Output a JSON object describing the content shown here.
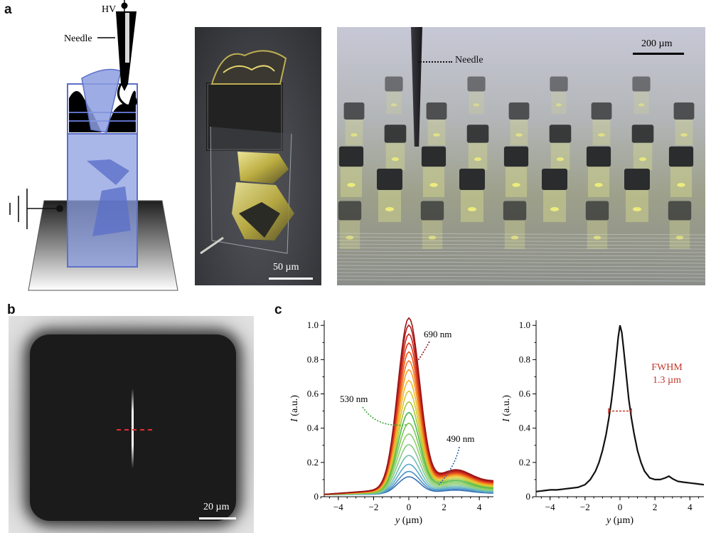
{
  "panels": {
    "a": "a",
    "b": "b",
    "c": "c"
  },
  "panel_a": {
    "diagram": {
      "hv_label": "HV",
      "needle_label": "Needle"
    },
    "photo_single": {
      "scale_label": "50 µm"
    },
    "photo_array": {
      "scale_label": "200 µm",
      "needle_label": "Needle"
    }
  },
  "panel_b": {
    "scale_label": "20 µm"
  },
  "colors": {
    "diagram_blue": "#8c9de0",
    "diagram_blue_dark": "#5d70c8",
    "fwhm_red": "#c0392b",
    "profile_black": "#111111"
  },
  "chart_data": [
    {
      "type": "line",
      "xlabel_italic": "y",
      "xlabel_unit": "(µm)",
      "ylabel": "I",
      "ylabel_unit": "(a.u.)",
      "xlim": [
        -4.8,
        4.8
      ],
      "ylim": [
        0,
        1.03
      ],
      "xticks": [
        -4,
        -2,
        0,
        2,
        4
      ],
      "yticks": [
        0,
        0.2,
        0.4,
        0.6,
        0.8,
        1.0
      ],
      "ytick_labels": [
        "0",
        "0.2",
        "0.4",
        "0.6",
        "0.8",
        "1.0"
      ],
      "annotations": [
        {
          "text": "690 nm",
          "color": "#8b1a1a"
        },
        {
          "text": "530 nm",
          "color": "#3aa43a"
        },
        {
          "text": "490 nm",
          "color": "#2d5fa8"
        }
      ],
      "series": [
        {
          "color": "#3a6fb0",
          "peak": 0.1,
          "shoulder": 0.02
        },
        {
          "color": "#4a8ec8",
          "peak": 0.13,
          "shoulder": 0.025
        },
        {
          "color": "#5aa8c8",
          "peak": 0.17,
          "shoulder": 0.03
        },
        {
          "color": "#6fbfb0",
          "peak": 0.22,
          "shoulder": 0.035
        },
        {
          "color": "#86c98a",
          "peak": 0.28,
          "shoulder": 0.04
        },
        {
          "color": "#8fd06a",
          "peak": 0.34,
          "shoulder": 0.045
        },
        {
          "color": "#7cc652",
          "peak": 0.4,
          "shoulder": 0.05
        },
        {
          "color": "#4cb84a",
          "peak": 0.46,
          "shoulder": 0.055
        },
        {
          "color": "#a8c83a",
          "peak": 0.52,
          "shoulder": 0.06
        },
        {
          "color": "#d4c832",
          "peak": 0.58,
          "shoulder": 0.065
        },
        {
          "color": "#f0b82a",
          "peak": 0.64,
          "shoulder": 0.07
        },
        {
          "color": "#f59a26",
          "peak": 0.7,
          "shoulder": 0.072
        },
        {
          "color": "#f07a22",
          "peak": 0.75,
          "shoulder": 0.074
        },
        {
          "color": "#e85a1e",
          "peak": 0.8,
          "shoulder": 0.076
        },
        {
          "color": "#dc3e1e",
          "peak": 0.85,
          "shoulder": 0.078
        },
        {
          "color": "#c8281e",
          "peak": 0.9,
          "shoulder": 0.08
        },
        {
          "color": "#b01e1e",
          "peak": 0.95,
          "shoulder": 0.082
        },
        {
          "color": "#9a1414",
          "peak": 0.99,
          "shoulder": 0.085
        }
      ]
    },
    {
      "type": "line",
      "xlabel_italic": "y",
      "xlabel_unit": "(µm)",
      "ylabel": "I",
      "ylabel_unit": "(a.u.)",
      "xlim": [
        -4.8,
        4.8
      ],
      "ylim": [
        0,
        1.03
      ],
      "xticks": [
        -4,
        -2,
        0,
        2,
        4
      ],
      "yticks": [
        0,
        0.2,
        0.4,
        0.6,
        0.8,
        1.0
      ],
      "ytick_labels": [
        "0",
        "0.2",
        "0.4",
        "0.6",
        "0.8",
        "1.0"
      ],
      "fwhm_label_line1": "FWHM",
      "fwhm_label_line2": "1.3 µm",
      "fwhm": 1.3,
      "half_max": 0.5,
      "series": [
        {
          "x": [
            -4.8,
            -4.4,
            -4.0,
            -3.6,
            -3.2,
            -2.8,
            -2.4,
            -2.0,
            -1.7,
            -1.4,
            -1.2,
            -1.0,
            -0.8,
            -0.65,
            -0.5,
            -0.35,
            -0.2,
            -0.1,
            0,
            0.1,
            0.2,
            0.35,
            0.5,
            0.65,
            0.8,
            1.0,
            1.2,
            1.4,
            1.7,
            2.0,
            2.3,
            2.6,
            2.8,
            3.0,
            3.3,
            3.6,
            4.0,
            4.4,
            4.8
          ],
          "y": [
            0.03,
            0.035,
            0.04,
            0.04,
            0.045,
            0.05,
            0.055,
            0.07,
            0.1,
            0.15,
            0.2,
            0.27,
            0.36,
            0.45,
            0.55,
            0.68,
            0.83,
            0.93,
            1.0,
            0.96,
            0.87,
            0.72,
            0.57,
            0.46,
            0.37,
            0.27,
            0.2,
            0.15,
            0.11,
            0.1,
            0.1,
            0.11,
            0.12,
            0.105,
            0.09,
            0.085,
            0.08,
            0.075,
            0.07
          ]
        }
      ]
    }
  ]
}
